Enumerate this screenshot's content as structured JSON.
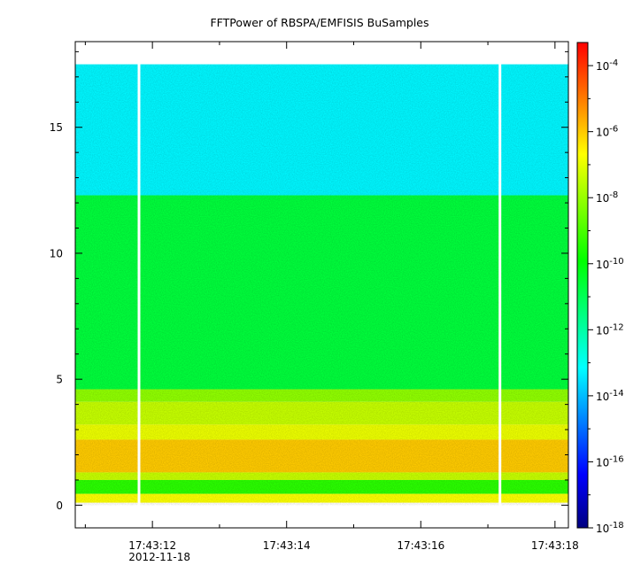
{
  "chart_data": {
    "type": "heatmap",
    "title": "FFTPower of RBSPA/EMFISIS  BuSamples",
    "x": {
      "ticks": [
        {
          "label": "17:43:12",
          "t": 12
        },
        {
          "label": "17:43:14",
          "t": 14
        },
        {
          "label": "17:43:16",
          "t": 16
        },
        {
          "label": "17:43:18",
          "t": 18
        }
      ],
      "date_label": "2012-11-18",
      "range": [
        10.85,
        18.2
      ],
      "minor_step": 1
    },
    "y": {
      "ticks": [
        0,
        5,
        10,
        15
      ],
      "range": [
        -0.9,
        18.4
      ],
      "minor_step": 1
    },
    "colorbar": {
      "scale": "log",
      "range_exponent": [
        -18,
        -3.3
      ],
      "tick_exponents": [
        -18,
        -16,
        -14,
        -12,
        -10,
        -8,
        -6,
        -4
      ],
      "tick_labels": [
        "10",
        "10",
        "10",
        "10",
        "10",
        "10",
        "10",
        "10"
      ],
      "tick_superscripts": [
        "-18",
        "-16",
        "-14",
        "-12",
        "-10",
        "-8",
        "-6",
        "-4"
      ],
      "colors": [
        "#000080",
        "#0000ff",
        "#0080ff",
        "#00ffff",
        "#00ff80",
        "#00ff00",
        "#80ff00",
        "#ffff00",
        "#ff8000",
        "#ff0000"
      ]
    },
    "data_extent": {
      "t": [
        10.85,
        18.2
      ],
      "f": [
        0,
        17.5
      ]
    },
    "gaps": [
      11.8,
      17.18
    ],
    "bands": [
      {
        "f": [
          12.3,
          17.5
        ],
        "log_power": -13.2
      },
      {
        "f": [
          4.6,
          12.3
        ],
        "log_power": -10.6
      },
      {
        "f": [
          4.1,
          4.6
        ],
        "log_power": -8.0
      },
      {
        "f": [
          3.2,
          4.1
        ],
        "log_power": -7.3
      },
      {
        "f": [
          2.6,
          3.2
        ],
        "log_power": -6.8
      },
      {
        "f": [
          1.3,
          2.6
        ],
        "log_power": -5.9
      },
      {
        "f": [
          1.0,
          1.3
        ],
        "log_power": -7.3
      },
      {
        "f": [
          0.45,
          1.0
        ],
        "log_power": -9.3
      },
      {
        "f": [
          0.1,
          0.45
        ],
        "log_power": -6.6
      }
    ]
  }
}
